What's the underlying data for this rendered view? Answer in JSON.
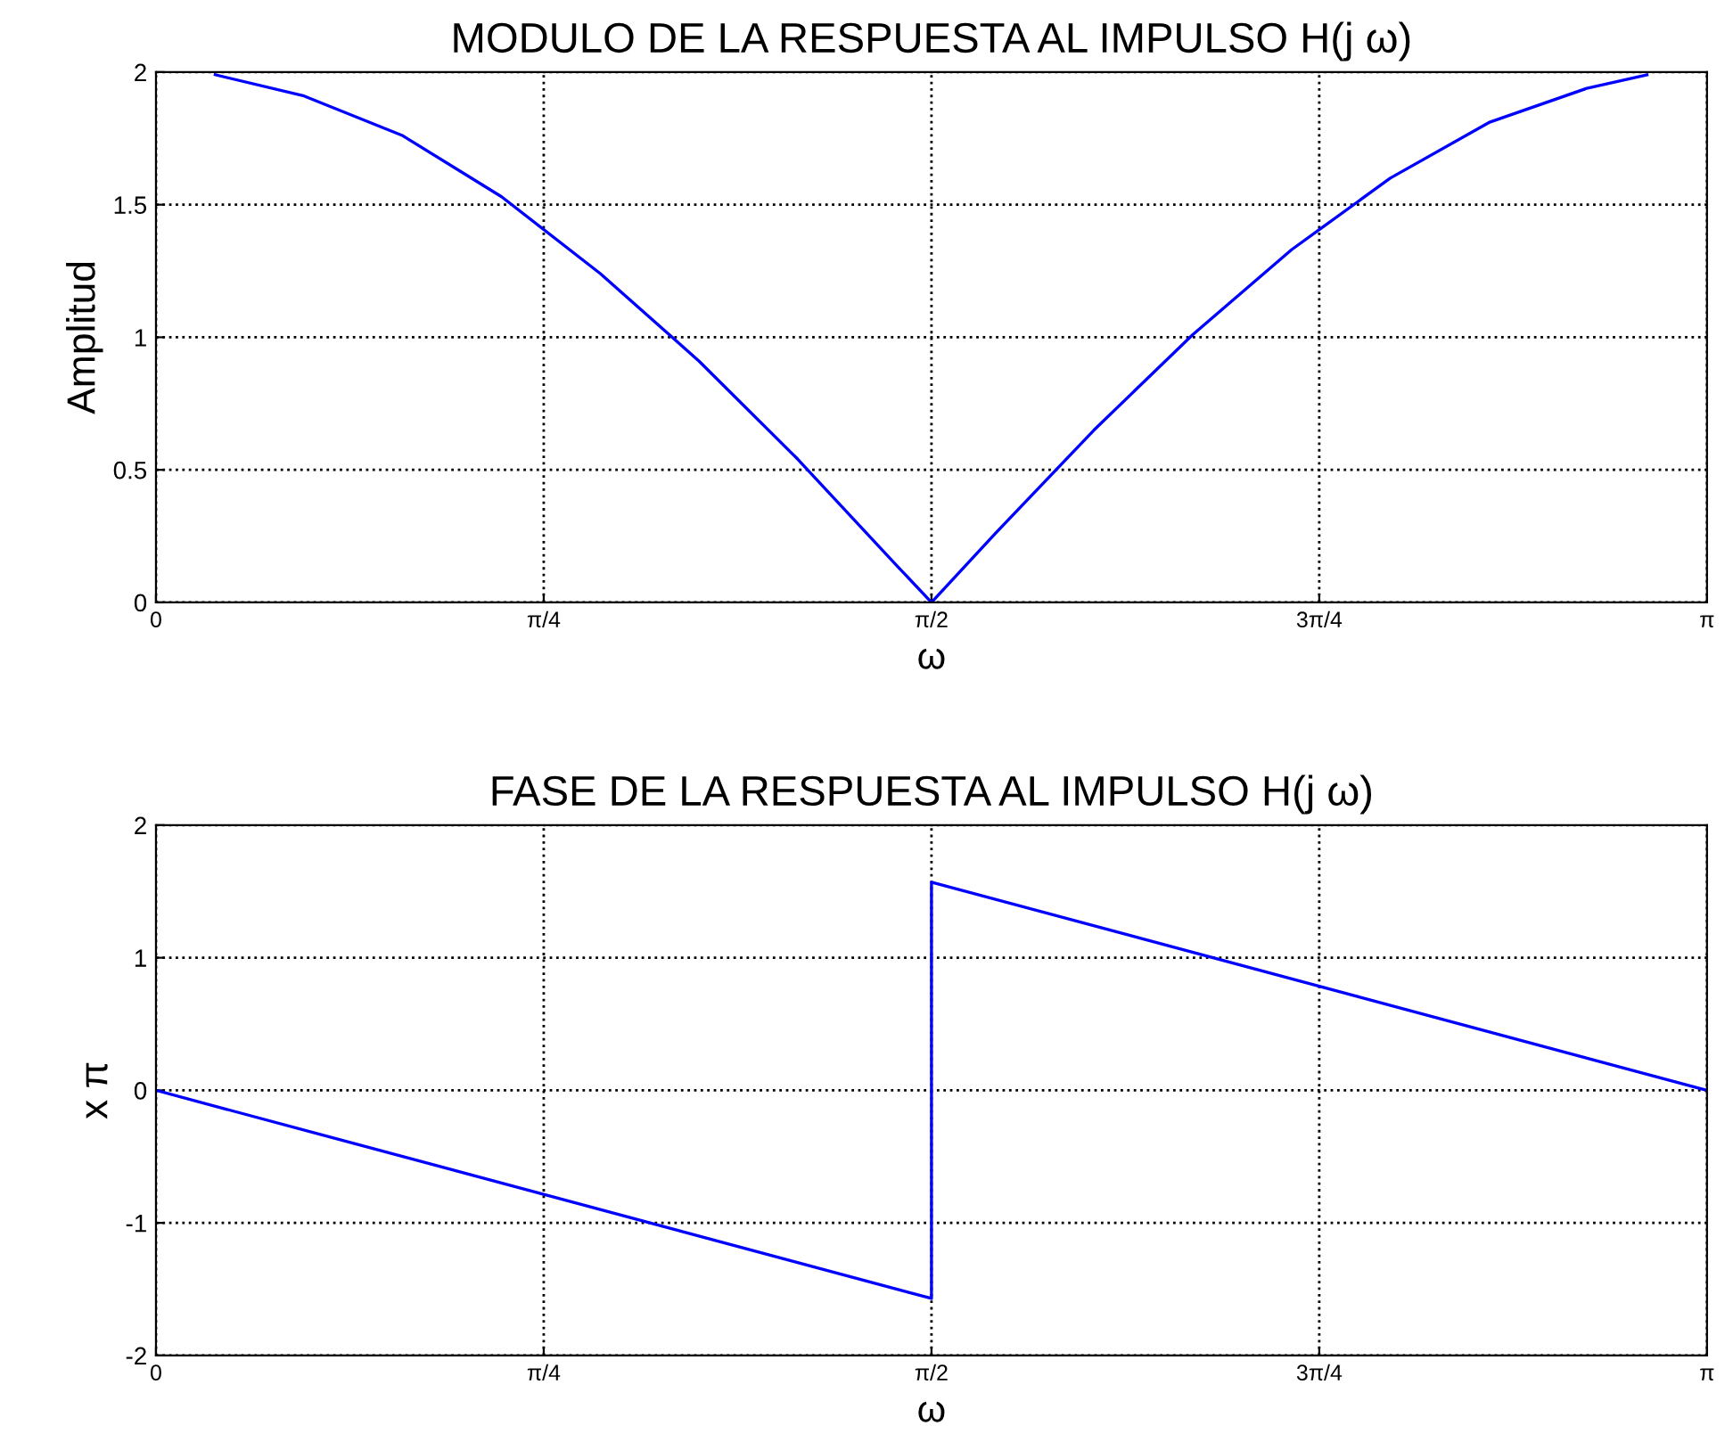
{
  "chart_data": [
    {
      "type": "line",
      "title": "MODULO DE LA RESPUESTA AL IMPULSO H(j ω)",
      "xlabel": "ω",
      "ylabel": "Amplitud",
      "grid": true,
      "line_style": "solid",
      "xlim": [
        0,
        3.1416
      ],
      "xticks": [
        0,
        {
          "value": 0.7854,
          "label": "π/4"
        },
        {
          "value": 1.5708,
          "label": "π/2"
        },
        {
          "value": 2.3562,
          "label": "3π/4"
        },
        {
          "value": 3.1416,
          "label": "π"
        }
      ],
      "ylim": [
        0,
        2
      ],
      "yticks": [
        0,
        0.5,
        1,
        1.5,
        2
      ],
      "series": [
        {
          "color": "#0000ff",
          "x": [
            0.12,
            0.3,
            0.5,
            0.7,
            0.9,
            1.1,
            1.3,
            1.5,
            1.5708,
            1.7,
            1.9,
            2.1,
            2.3,
            2.5,
            2.7,
            2.9,
            3.02
          ],
          "values": [
            1.99,
            1.91,
            1.76,
            1.53,
            1.24,
            0.91,
            0.54,
            0.14,
            0,
            0.26,
            0.65,
            1.01,
            1.33,
            1.6,
            1.81,
            1.94,
            1.99
          ]
        }
      ]
    },
    {
      "type": "line",
      "title": "FASE DE LA RESPUESTA AL IMPULSO H(j ω)",
      "xlabel": "ω",
      "ylabel": "x π",
      "grid": true,
      "line_style": "solid",
      "xlim": [
        0,
        3.1416
      ],
      "xticks": [
        0,
        {
          "value": 0.7854,
          "label": "π/4"
        },
        {
          "value": 1.5708,
          "label": "π/2"
        },
        {
          "value": 2.3562,
          "label": "3π/4"
        },
        {
          "value": 3.1416,
          "label": "π"
        }
      ],
      "ylim": [
        -2,
        2
      ],
      "yticks": [
        -2,
        -1,
        0,
        1,
        2
      ],
      "series": [
        {
          "color": "#0000ff",
          "x": [
            0,
            1.5708,
            1.5708,
            3.1416
          ],
          "values": [
            0,
            -1.57,
            1.57,
            0
          ]
        }
      ]
    }
  ]
}
